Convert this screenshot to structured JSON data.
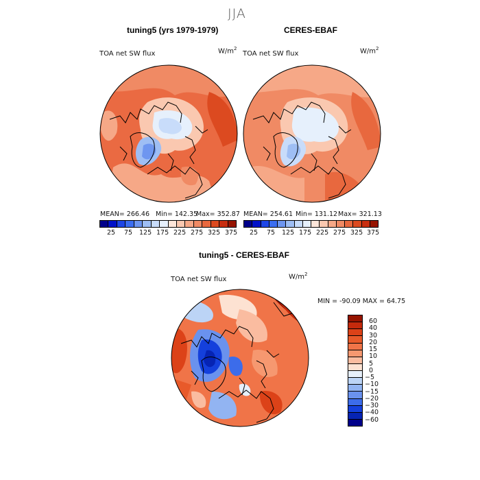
{
  "figure": {
    "title": "JJA",
    "panel_left": {
      "heading": "tuning5 (yrs 1979-1979)",
      "field": "TOA net SW flux",
      "units": "W/m",
      "units_exp": "2",
      "stats": {
        "mean": "MEAN= 266.46",
        "min": "Min= 142.35",
        "max": "Max= 352.87"
      }
    },
    "panel_right": {
      "heading": "CERES-EBAF",
      "field": "TOA net SW flux",
      "units": "W/m",
      "units_exp": "2",
      "stats": {
        "mean": "MEAN= 254.61",
        "min": "Min= 131.12",
        "max": "Max= 321.13"
      }
    },
    "panel_diff": {
      "heading": "tuning5 - CERES-EBAF",
      "field": "TOA net SW flux",
      "units": "W/m",
      "units_exp": "2",
      "minmax": "MIN = -90.09  MAX =  64.75"
    },
    "abs_colorbar": {
      "labels": [
        "25",
        "75",
        "125",
        "175",
        "225",
        "275",
        "325",
        "375"
      ],
      "colors": [
        "#00008a",
        "#0011c8",
        "#1e46e6",
        "#3c6ef0",
        "#6e96f0",
        "#9ebef4",
        "#c8dcfa",
        "#e6f0fc",
        "#fde6da",
        "#fac8b0",
        "#f6a887",
        "#f08a64",
        "#e8683e",
        "#dc4a20",
        "#c82e10",
        "#961400"
      ]
    },
    "diff_colorbar": {
      "labels": [
        "60",
        "40",
        "30",
        "20",
        "15",
        "10",
        "5",
        "0",
        "−5",
        "−10",
        "−15",
        "−20",
        "−30",
        "−40",
        "−60"
      ],
      "colors": [
        "#961400",
        "#c42a0c",
        "#dc4218",
        "#e85a2a",
        "#f07448",
        "#f69870",
        "#fabca0",
        "#fde2d2",
        "#e6effa",
        "#bcd4f6",
        "#92b4f2",
        "#6a92ee",
        "#3c6cea",
        "#1440dc",
        "#0624b4",
        "#00008a"
      ]
    }
  }
}
